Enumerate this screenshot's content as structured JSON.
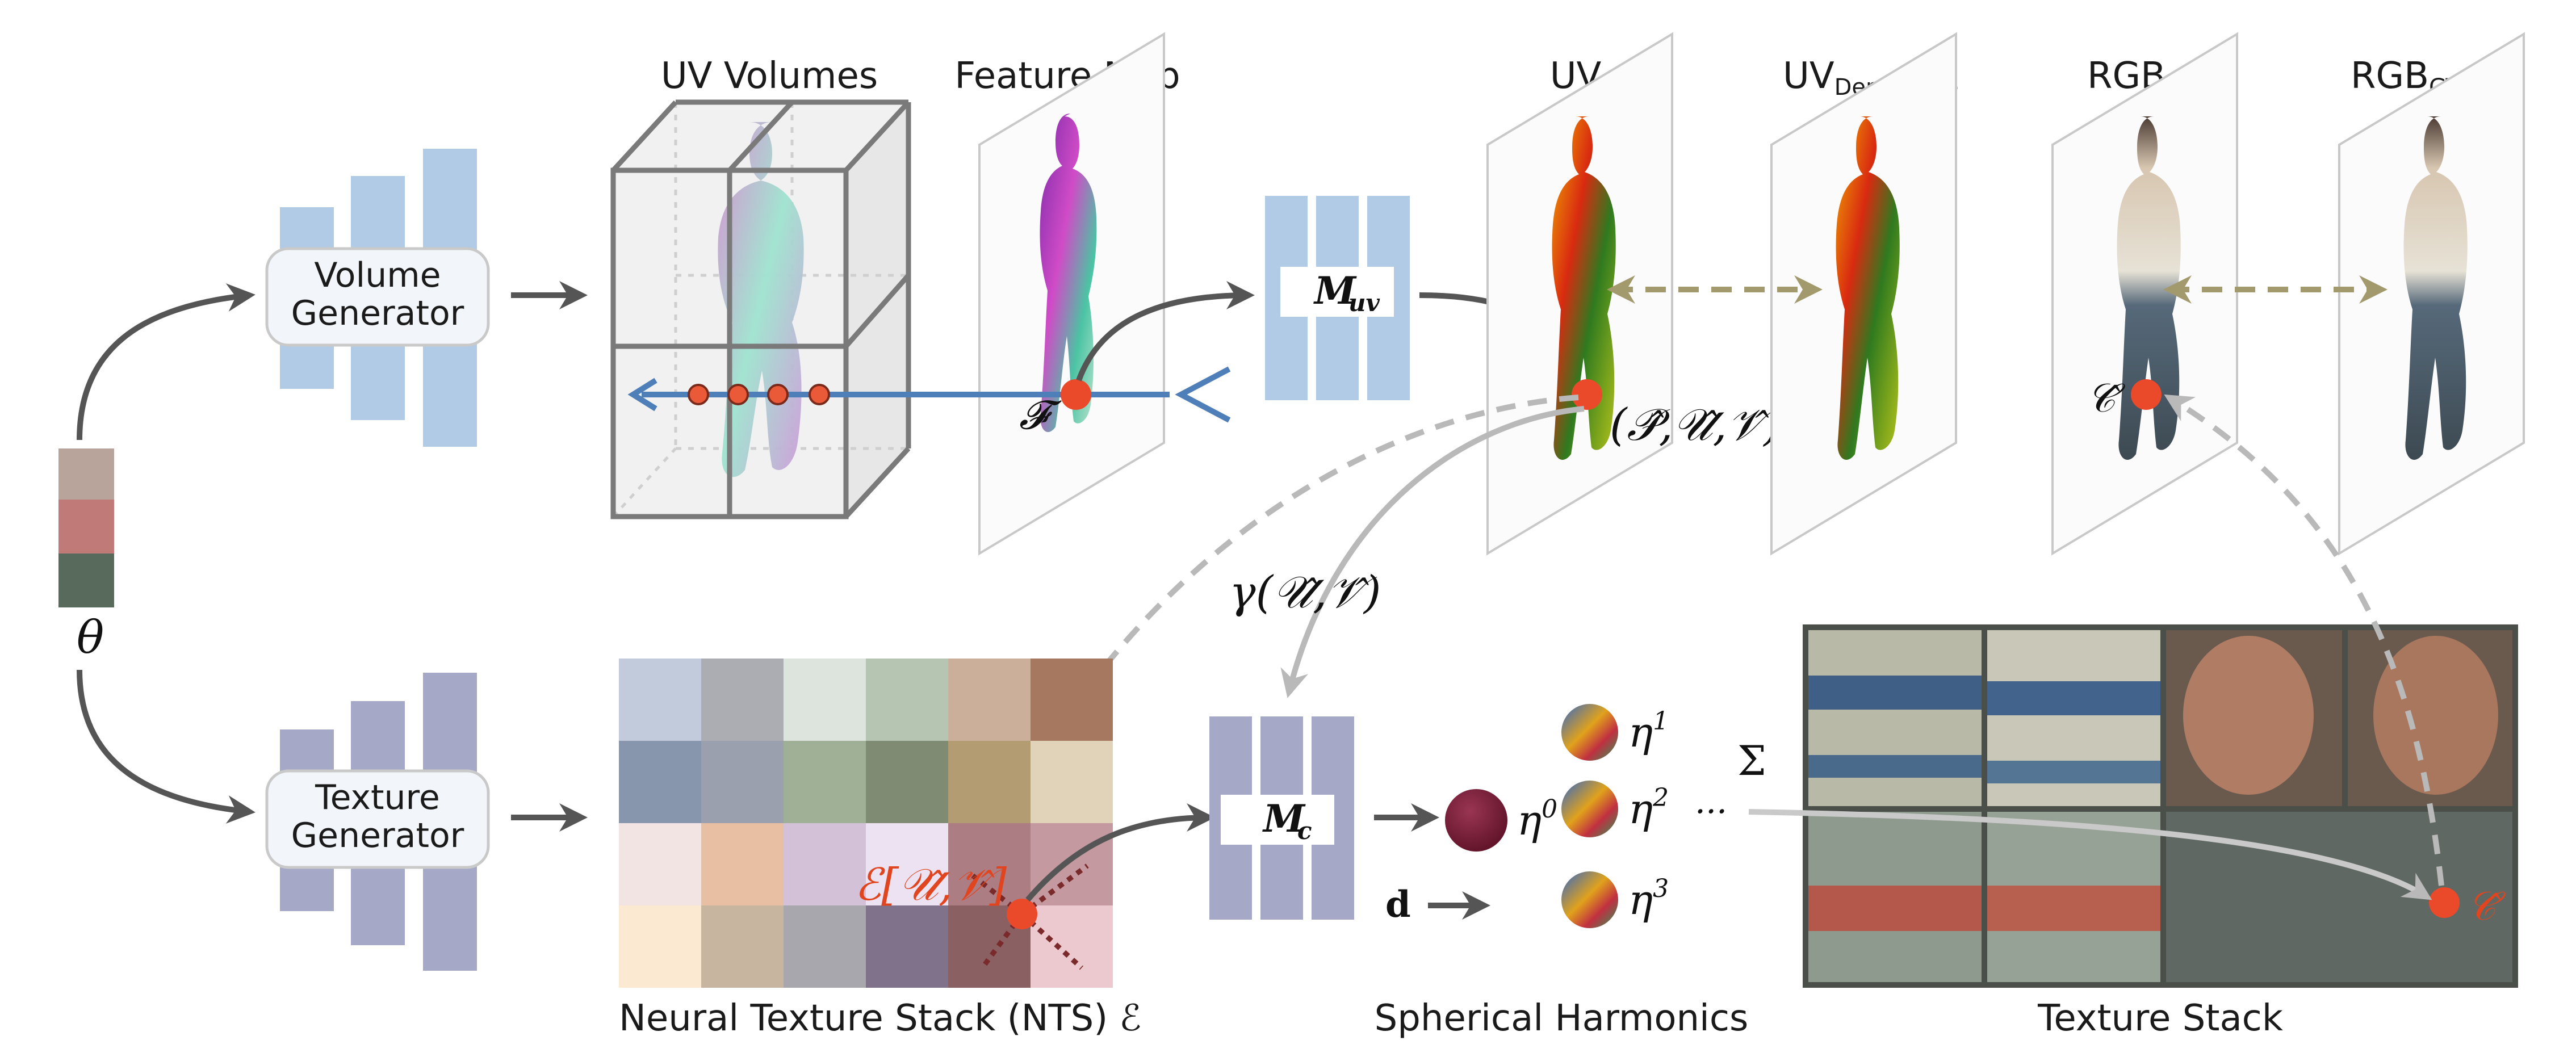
{
  "diagram": {
    "latent_symbol": "θ",
    "volume_generator": {
      "line1": "Volume",
      "line2": "Generator"
    },
    "texture_generator": {
      "line1": "Texture",
      "line2": "Generator"
    },
    "uv_volumes_label": "UV Volumes",
    "feature_map_label": "Feature Map",
    "feature_symbol": "𝓕",
    "m_uv": {
      "main": "M",
      "sub": "uv"
    },
    "m_c": {
      "main": "M",
      "sub": "c"
    },
    "uv_label": "UV",
    "uv_densepose_label": {
      "main": "UV",
      "sub": "DensePose"
    },
    "rgb_label": "RGB",
    "rgb_gt_label": {
      "main": "RGB",
      "sub": "GT"
    },
    "puv_point": "(𝒫̂,𝒰̂,𝒱̂)",
    "c_hat_rgb": "𝒞̂",
    "c_hat_stack": "𝒞̂",
    "gamma_label": "γ(𝒰̂,𝒱̂)",
    "nts_lookup": "ℰ[𝒰̂,𝒱̂]",
    "nts_caption": "Neural Texture Stack (NTS) ℰ",
    "sh_caption": "Spherical Harmonics",
    "texture_stack_caption": "Texture Stack",
    "eta": [
      {
        "base": "η",
        "sup": "0"
      },
      {
        "base": "η",
        "sup": "1"
      },
      {
        "base": "η",
        "sup": "2"
      },
      {
        "base": "η",
        "sup": "3"
      }
    ],
    "dots": "···",
    "sum": "Σ",
    "dir_symbol": "d",
    "colors": {
      "uv_blue": "#b1cae6",
      "tex_purple": "#a6a8c8",
      "accent_red": "#e0451f",
      "ray_blue": "#4f7fb8",
      "compare_olive": "#a29a6c"
    }
  }
}
